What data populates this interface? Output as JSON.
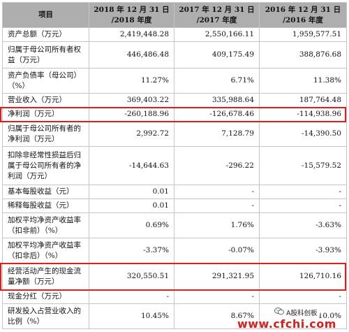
{
  "header": {
    "item": "项目",
    "col2018_line1": "2018 年 12 月 31 日",
    "col2018_line2": "/2018 年度",
    "col2017_line1": "2017 年 12 月 31 日",
    "col2017_line2": "/2017 年度",
    "col2016_line1": "2016 年 12 月 31 日",
    "col2016_line2": "/2016 年度"
  },
  "rows": [
    {
      "label": "资产总额（万元）",
      "v2018": "2,419,448.28",
      "v2017": "2,550,166.11",
      "v2016": "1,959,577.51"
    },
    {
      "label": "归属于母公司所有者权益（万元）",
      "v2018": "446,486.48",
      "v2017": "409,175.49",
      "v2016": "388,876.68"
    },
    {
      "label": "资产负债率（母公司）（%）",
      "v2018": "11.27%",
      "v2017": "6.71%",
      "v2016": "11.38%"
    },
    {
      "label": "营业收入（万元）",
      "v2018": "369,403.22",
      "v2017": "335,988.64",
      "v2016": "187,764.48"
    },
    {
      "label": "净利润（万元）",
      "v2018": "-260,188.96",
      "v2017": "-126,678.46",
      "v2016": "-114,938.96"
    },
    {
      "label": "归属于母公司所有者的净利润（万元）",
      "v2018": "2,992.72",
      "v2017": "7,128.79",
      "v2016": "-14,390.50"
    },
    {
      "label": "扣除非经常性损益后归属于母公司所有者的净利润（万元）",
      "v2018": "-14,644.63",
      "v2017": "-296.22",
      "v2016": "-15,579.52"
    },
    {
      "label": "基本每股收益（元）",
      "v2018": "0.01",
      "v2017": "-",
      "v2016": "-"
    },
    {
      "label": "稀释每股收益（元）",
      "v2018": "0.01",
      "v2017": "-",
      "v2016": "-"
    },
    {
      "label": "加权平均净资产收益率（扣非前）（%）",
      "v2018": "0.69%",
      "v2017": "1.76%",
      "v2016": "-3.63%"
    },
    {
      "label": "加权平均净资产收益率（扣非后）（%）",
      "v2018": "-3.37%",
      "v2017": "-0.07%",
      "v2016": "-3.93%"
    },
    {
      "label": "经营活动产生的现金流量净额（万元）",
      "v2018": "320,550.51",
      "v2017": "291,321.95",
      "v2016": "126,710.16"
    },
    {
      "label": "现金分红（万元）",
      "v2018": "-",
      "v2017": "-",
      "v2016": "-"
    },
    {
      "label": "研发投入占营业收入的比例（%）",
      "v2018": "10.45%",
      "v2017": "8.67%",
      "v2016": "10.0%"
    }
  ],
  "watermark": {
    "brand": "A股科创板",
    "url": "www.cfchi.com",
    "colors": {
      "url": "#d81e1e",
      "brand_bg": "#ffffff"
    }
  },
  "colors": {
    "header_bg": "#aeaeae",
    "border": "#c5c5c5",
    "highlight": "#e01e1e"
  }
}
